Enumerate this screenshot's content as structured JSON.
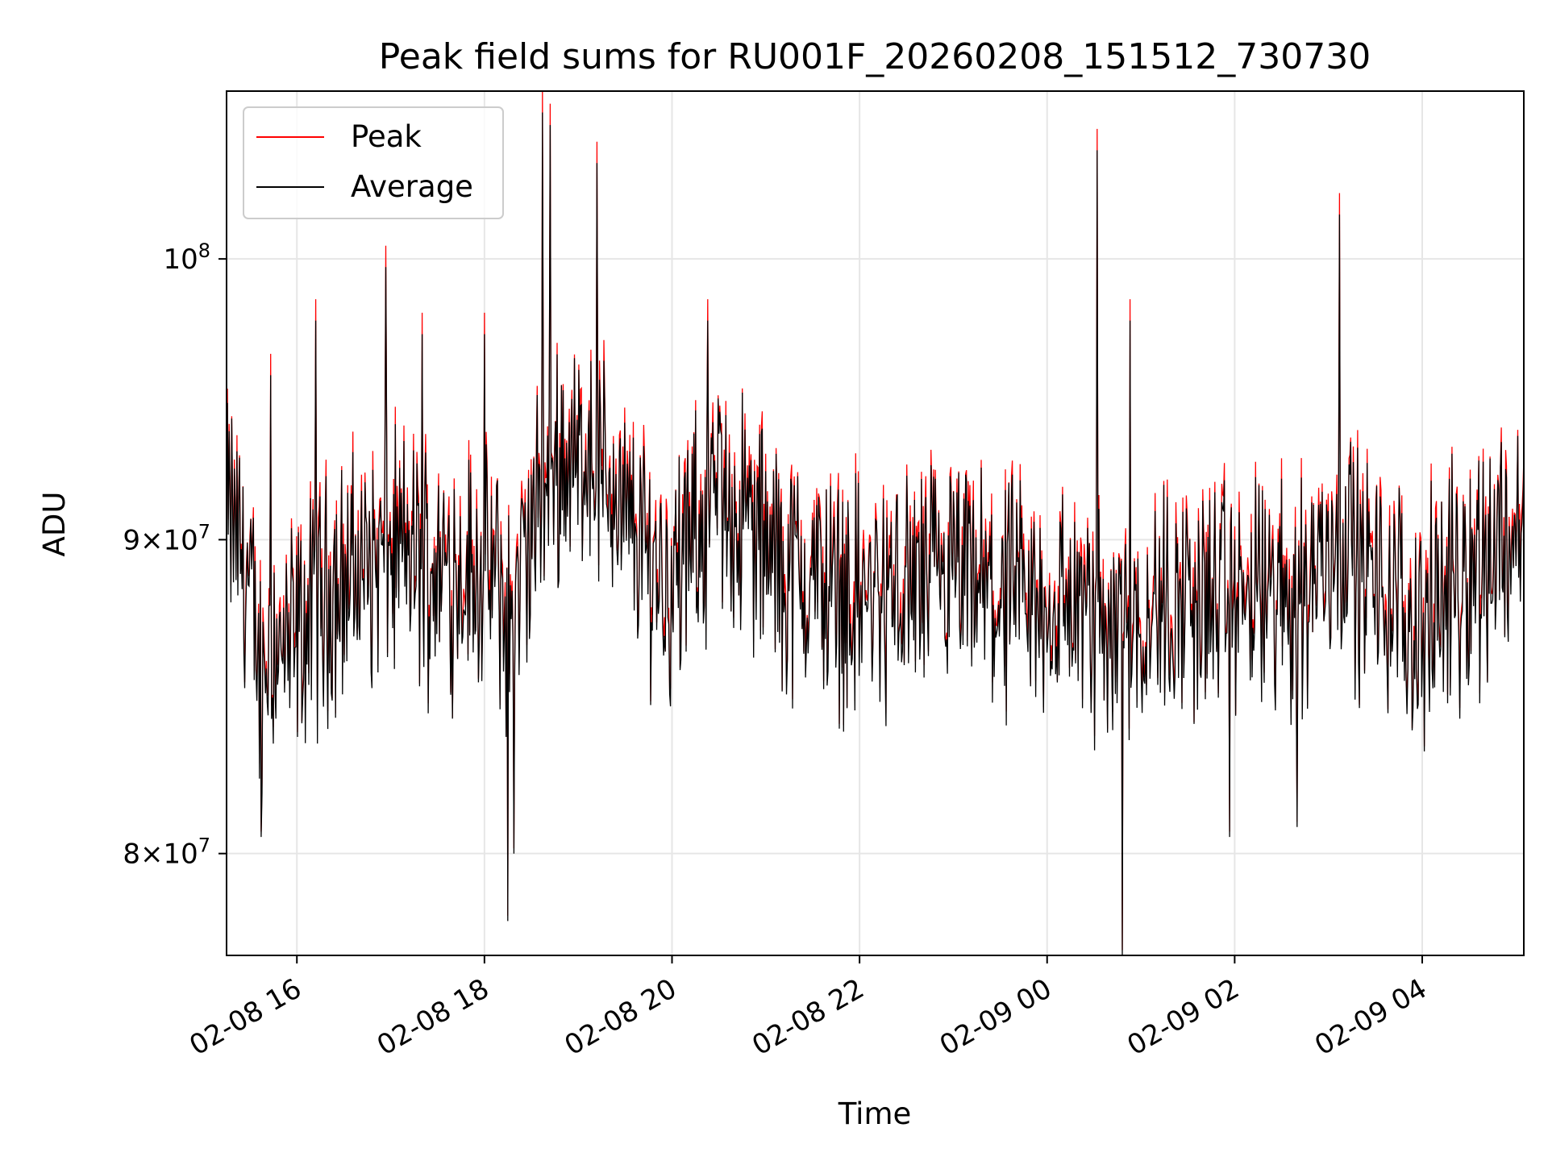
{
  "chart_data": {
    "type": "line",
    "title": "Peak field sums for RU001F_20260208_151512_730730",
    "xlabel": "Time",
    "ylabel": "ADU",
    "yscale": "log",
    "ylim": [
      77000000,
      106500000
    ],
    "xlim": [
      "2026-02-08 15:15",
      "2026-02-09 05:05"
    ],
    "grid": true,
    "legend_position": "upper-left",
    "x_ticks": [
      "02-08 16",
      "02-08 18",
      "02-08 20",
      "02-08 22",
      "02-09 00",
      "02-09 02",
      "02-09 04"
    ],
    "y_ticks": [
      {
        "base": "8",
        "exponent": "7",
        "value": 80000000
      },
      {
        "base": "9",
        "exponent": "7",
        "value": 90000000
      },
      {
        "base": "",
        "exponent": "8",
        "value": 100000000
      }
    ],
    "series": [
      {
        "name": "Peak",
        "color": "#ff0000"
      },
      {
        "name": "Average",
        "color": "#000000"
      }
    ],
    "anchor_points": {
      "x": [
        "2026-02-08 15:15",
        "2026-02-08 15:23",
        "2026-02-08 15:30",
        "2026-02-08 15:37",
        "2026-02-08 15:42",
        "2026-02-08 15:45",
        "2026-02-08 15:50",
        "2026-02-08 16:05",
        "2026-02-08 16:15",
        "2026-02-08 16:25",
        "2026-02-08 16:45",
        "2026-02-08 17:00",
        "2026-02-08 17:10",
        "2026-02-08 17:30",
        "2026-02-08 17:50",
        "2026-02-08 18:10",
        "2026-02-08 18:15",
        "2026-02-08 18:20",
        "2026-02-08 18:40",
        "2026-02-08 18:50",
        "2026-02-08 19:00",
        "2026-02-08 19:05",
        "2026-02-08 19:20",
        "2026-02-08 19:30",
        "2026-02-08 19:45",
        "2026-02-08 20:00",
        "2026-02-08 20:20",
        "2026-02-08 20:30",
        "2026-02-08 20:50",
        "2026-02-08 21:10",
        "2026-02-08 21:40",
        "2026-02-08 22:00",
        "2026-02-08 22:20",
        "2026-02-08 22:40",
        "2026-02-08 23:00",
        "2026-02-08 23:30",
        "2026-02-09 00:00",
        "2026-02-09 00:15",
        "2026-02-09 00:30",
        "2026-02-09 00:45",
        "2026-02-09 01:00",
        "2026-02-09 01:30",
        "2026-02-09 02:00",
        "2026-02-09 02:30",
        "2026-02-09 02:45",
        "2026-02-09 03:00",
        "2026-02-09 03:08",
        "2026-02-09 03:20",
        "2026-02-09 03:40",
        "2026-02-09 04:00",
        "2026-02-09 04:20",
        "2026-02-09 04:40",
        "2026-02-09 05:05"
      ],
      "average": [
        91000000,
        90000000,
        88000000,
        85500000,
        86500000,
        87000000,
        86000000,
        87000000,
        88000000,
        88500000,
        89000000,
        89500000,
        89500000,
        89000000,
        89000000,
        88500000,
        87000000,
        88000000,
        92000000,
        93000000,
        92500000,
        93500000,
        92000000,
        90500000,
        89500000,
        88500000,
        90500000,
        91500000,
        90500000,
        89000000,
        88500000,
        88000000,
        88000000,
        88500000,
        88500000,
        88000000,
        87500000,
        88000000,
        87000000,
        87500000,
        87500000,
        88000000,
        88000000,
        88000000,
        88500000,
        89500000,
        90500000,
        89000000,
        88000000,
        87000000,
        88500000,
        89500000,
        90500000
      ]
    },
    "spikes_peak": [
      {
        "x": "2026-02-08 15:43",
        "y": 96500000
      },
      {
        "x": "2026-02-08 16:12",
        "y": 98500000
      },
      {
        "x": "2026-02-08 16:57",
        "y": 100500000
      },
      {
        "x": "2026-02-08 17:20",
        "y": 98000000
      },
      {
        "x": "2026-02-08 18:00",
        "y": 98000000
      },
      {
        "x": "2026-02-08 18:37",
        "y": 106500000
      },
      {
        "x": "2026-02-08 18:42",
        "y": 106000000
      },
      {
        "x": "2026-02-08 19:12",
        "y": 104500000
      },
      {
        "x": "2026-02-08 20:23",
        "y": 98500000
      },
      {
        "x": "2026-02-09 00:32",
        "y": 105000000
      },
      {
        "x": "2026-02-09 00:53",
        "y": 98500000
      },
      {
        "x": "2026-02-09 03:07",
        "y": 102500000
      }
    ],
    "dips_average": [
      {
        "x": "2026-02-08 15:37",
        "y": 80500000
      },
      {
        "x": "2026-02-08 18:15",
        "y": 78000000
      },
      {
        "x": "2026-02-08 18:19",
        "y": 80000000
      },
      {
        "x": "2026-02-09 00:48",
        "y": 77000000
      },
      {
        "x": "2026-02-09 01:57",
        "y": 80500000
      },
      {
        "x": "2026-02-09 02:40",
        "y": 80800000
      }
    ]
  }
}
